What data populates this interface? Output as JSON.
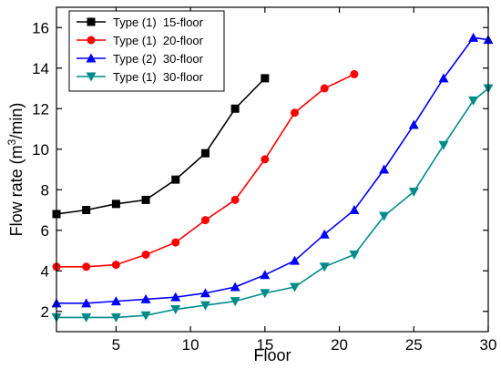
{
  "chart_data": {
    "type": "line",
    "xlabel": "Floor",
    "ylabel": "Flow rate (m³/min)",
    "ylabel_prefix": "Flow rate (m",
    "ylabel_sup": "3",
    "ylabel_suffix": "/min)",
    "xlim": [
      1,
      30
    ],
    "ylim": [
      1,
      17
    ],
    "xticks": [
      5,
      10,
      15,
      20,
      25,
      30
    ],
    "yticks": [
      2,
      4,
      6,
      8,
      10,
      12,
      14,
      16
    ],
    "legend_position": "top-left",
    "grid": false,
    "series": [
      {
        "name": "Type (1)  15-floor",
        "color": "#000000",
        "marker": "square",
        "x": [
          1,
          3,
          5,
          7,
          9,
          11,
          13,
          15
        ],
        "y": [
          6.8,
          7.0,
          7.3,
          7.5,
          8.5,
          9.8,
          12.0,
          13.5
        ]
      },
      {
        "name": "Type (1)  20-floor",
        "color": "#ff0000",
        "marker": "circle",
        "x": [
          1,
          3,
          5,
          7,
          9,
          11,
          13,
          15,
          17,
          19,
          21
        ],
        "y": [
          4.2,
          4.2,
          4.3,
          4.8,
          5.4,
          6.5,
          7.5,
          9.5,
          11.8,
          13.0,
          13.7
        ]
      },
      {
        "name": "Type (2)  30-floor",
        "color": "#0000ff",
        "marker": "triangle-up",
        "x": [
          1,
          3,
          5,
          7,
          9,
          11,
          13,
          15,
          17,
          19,
          21,
          23,
          25,
          27,
          29,
          30
        ],
        "y": [
          2.4,
          2.4,
          2.5,
          2.6,
          2.7,
          2.9,
          3.2,
          3.8,
          4.5,
          5.8,
          7.0,
          9.0,
          11.2,
          13.5,
          15.5,
          15.4
        ]
      },
      {
        "name": "Type (1)  30-floor",
        "color": "#008b8b",
        "marker": "triangle-down",
        "x": [
          1,
          3,
          5,
          7,
          9,
          11,
          13,
          15,
          17,
          19,
          21,
          23,
          25,
          27,
          29,
          30
        ],
        "y": [
          1.7,
          1.7,
          1.7,
          1.8,
          2.1,
          2.3,
          2.5,
          2.9,
          3.2,
          4.2,
          4.8,
          6.7,
          7.9,
          10.2,
          12.4,
          13.0
        ]
      }
    ]
  }
}
